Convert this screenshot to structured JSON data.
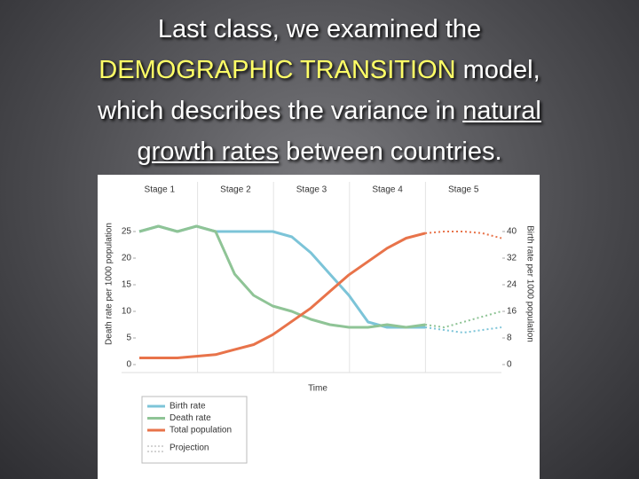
{
  "slide_title": {
    "line1": "Last class, we examined the",
    "highlight": "DEMOGRAPHIC TRANSITION",
    "line2_rest": " model,",
    "line3_start": "which describes the variance in ",
    "underline1": "natural",
    "underline2": "growth rates",
    "line4_rest": " between countries."
  },
  "chart_data": {
    "type": "line",
    "stages": [
      "Stage 1",
      "Stage 2",
      "Stage 3",
      "Stage 4",
      "Stage 5"
    ],
    "ylabel": "Death rate per 1000 population",
    "y2label": "Birth rate per 1000 population",
    "xlabel": "Time",
    "categories": [
      null,
      null,
      null,
      null,
      null,
      null,
      null,
      null,
      null,
      null,
      null,
      null,
      null,
      null,
      null,
      null,
      null,
      null,
      null,
      null
    ],
    "ylim": [
      0,
      31
    ],
    "yticks": [
      0,
      5,
      10,
      15,
      20,
      25
    ],
    "y2lim": [
      0,
      49.6
    ],
    "y2ticks": [
      0,
      8,
      16,
      24,
      32,
      40
    ],
    "projection_label": "Projection",
    "series": [
      {
        "name": "Birth rate",
        "color": "#7cc4d8",
        "values": [
          25,
          26,
          25,
          26,
          25,
          25,
          25,
          25,
          24,
          21,
          17,
          13,
          8,
          7,
          7,
          7,
          null,
          null,
          null,
          null
        ],
        "projection": [
          null,
          null,
          null,
          null,
          null,
          null,
          null,
          null,
          null,
          null,
          null,
          null,
          null,
          null,
          null,
          7,
          6.5,
          6,
          6.5,
          7
        ]
      },
      {
        "name": "Death rate",
        "color": "#8fc496",
        "values": [
          25,
          26,
          25,
          26,
          25,
          17,
          13,
          11,
          10,
          8.5,
          7.5,
          7,
          7,
          7.5,
          7,
          7.5,
          null,
          null,
          null,
          null
        ],
        "projection": [
          null,
          null,
          null,
          null,
          null,
          null,
          null,
          null,
          null,
          null,
          null,
          null,
          null,
          null,
          null,
          7.5,
          7,
          8,
          9,
          10
        ]
      },
      {
        "name": "Total population",
        "color": "#e8734a",
        "axis": "y2",
        "values": [
          2,
          2,
          2,
          2.5,
          3,
          4.5,
          6,
          9,
          13,
          17,
          22,
          27,
          31,
          35,
          38,
          39.5,
          null,
          null,
          null,
          null
        ],
        "projection": [
          null,
          null,
          null,
          null,
          null,
          null,
          null,
          null,
          null,
          null,
          null,
          null,
          null,
          null,
          null,
          39.5,
          40,
          40,
          39.5,
          38
        ]
      }
    ]
  }
}
